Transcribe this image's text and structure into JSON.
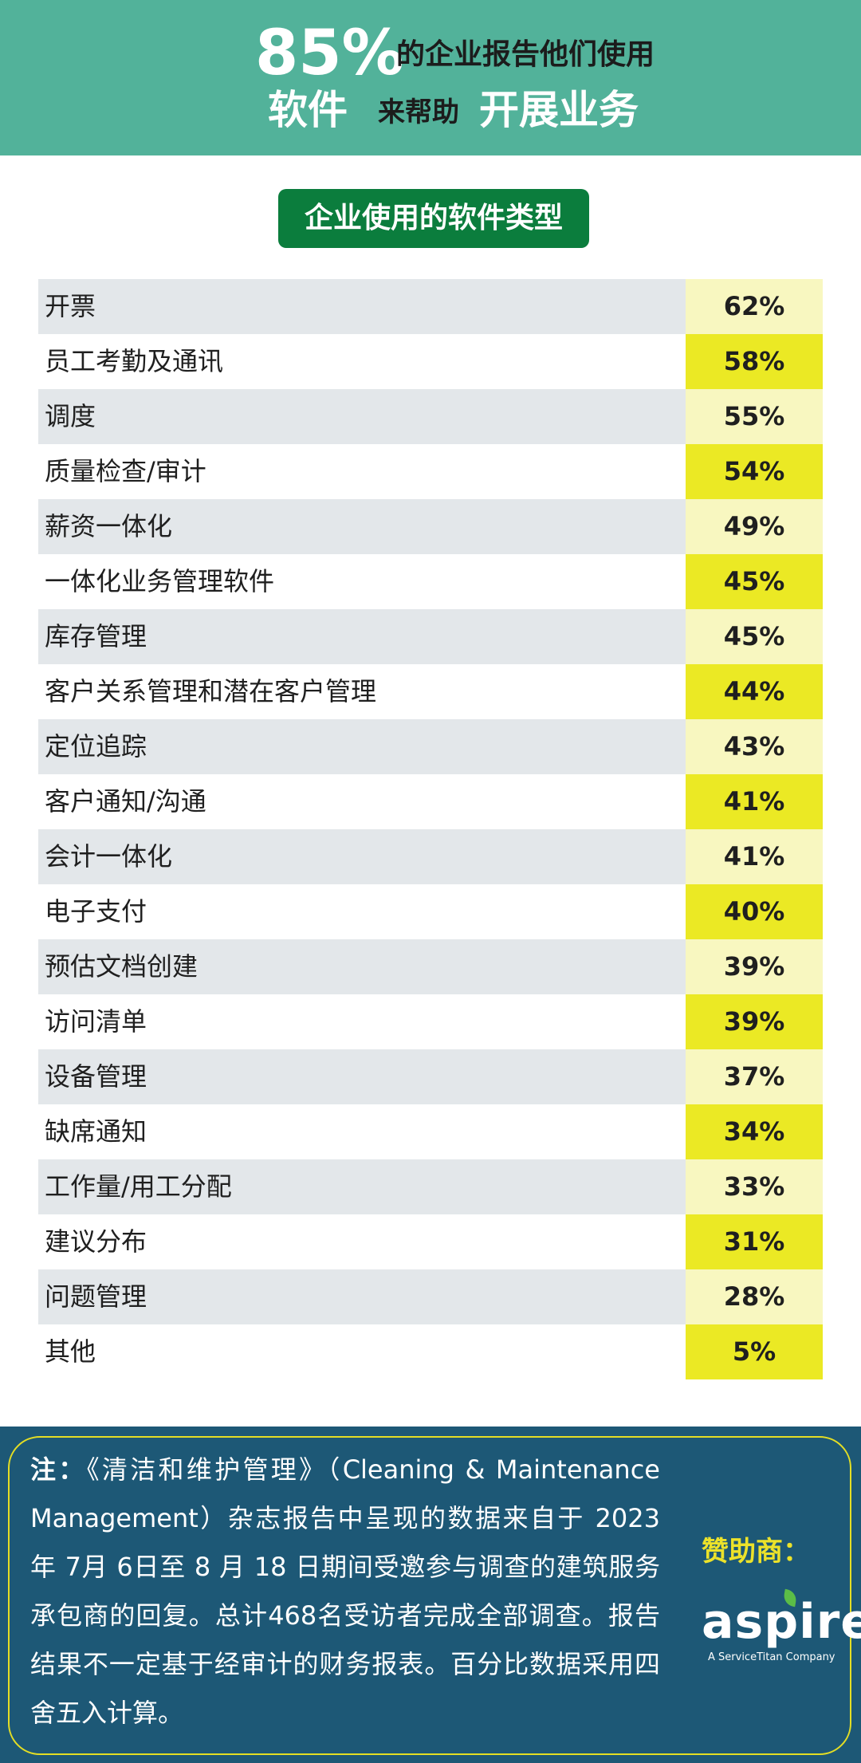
{
  "header": {
    "percent": "85%",
    "line1_rest": "的企业报告他们使用",
    "word1": "软件",
    "word2": "来帮助",
    "word3": "开展业务"
  },
  "chart_title": "企业使用的软件类型",
  "chart_data": {
    "type": "table",
    "title": "企业使用的软件类型",
    "categories": [
      "开票",
      "员工考勤及通讯",
      "调度",
      "质量检查/审计",
      "薪资一体化",
      "一体化业务管理软件",
      "库存管理",
      "客户关系管理和潜在客户管理",
      "定位追踪",
      "客户通知/沟通",
      "会计一体化",
      "电子支付",
      "预估文档创建",
      "访问清单",
      "设备管理",
      "缺席通知",
      "工作量/用工分配",
      "建议分布",
      "问题管理",
      "其他"
    ],
    "values": [
      62,
      58,
      55,
      54,
      49,
      45,
      45,
      44,
      43,
      41,
      41,
      40,
      39,
      39,
      37,
      34,
      33,
      31,
      28,
      5
    ],
    "value_suffix": "%",
    "colors": {
      "label_odd": "#e3e7ea",
      "label_even": "#ffffff",
      "value_odd": "#f8f7c0",
      "value_even": "#ebe924"
    }
  },
  "footer": {
    "note_label": "注：",
    "note_text": "《清洁和维护管理》（Cleaning & Maintenance Management）杂志报告中呈现的数据来自于 2023 年 7月 6日至 8 月 18 日期间受邀参与调查的建筑服务承包商的回复。总计468名受访者完成全部调查。报告结果不一定基于经审计的财务报表。百分比数据采用四舍五入计算。",
    "sponsor_label": "赞助商：",
    "logo_text": "aspire",
    "logo_sub": "A ServiceTitan Company"
  },
  "colors": {
    "header_bg": "#52b29a",
    "pill_bg": "#0b7d3d",
    "footer_bg": "#1d5876",
    "accent_yellow": "#ece22a",
    "logo_leaf": "#5bbd47"
  }
}
